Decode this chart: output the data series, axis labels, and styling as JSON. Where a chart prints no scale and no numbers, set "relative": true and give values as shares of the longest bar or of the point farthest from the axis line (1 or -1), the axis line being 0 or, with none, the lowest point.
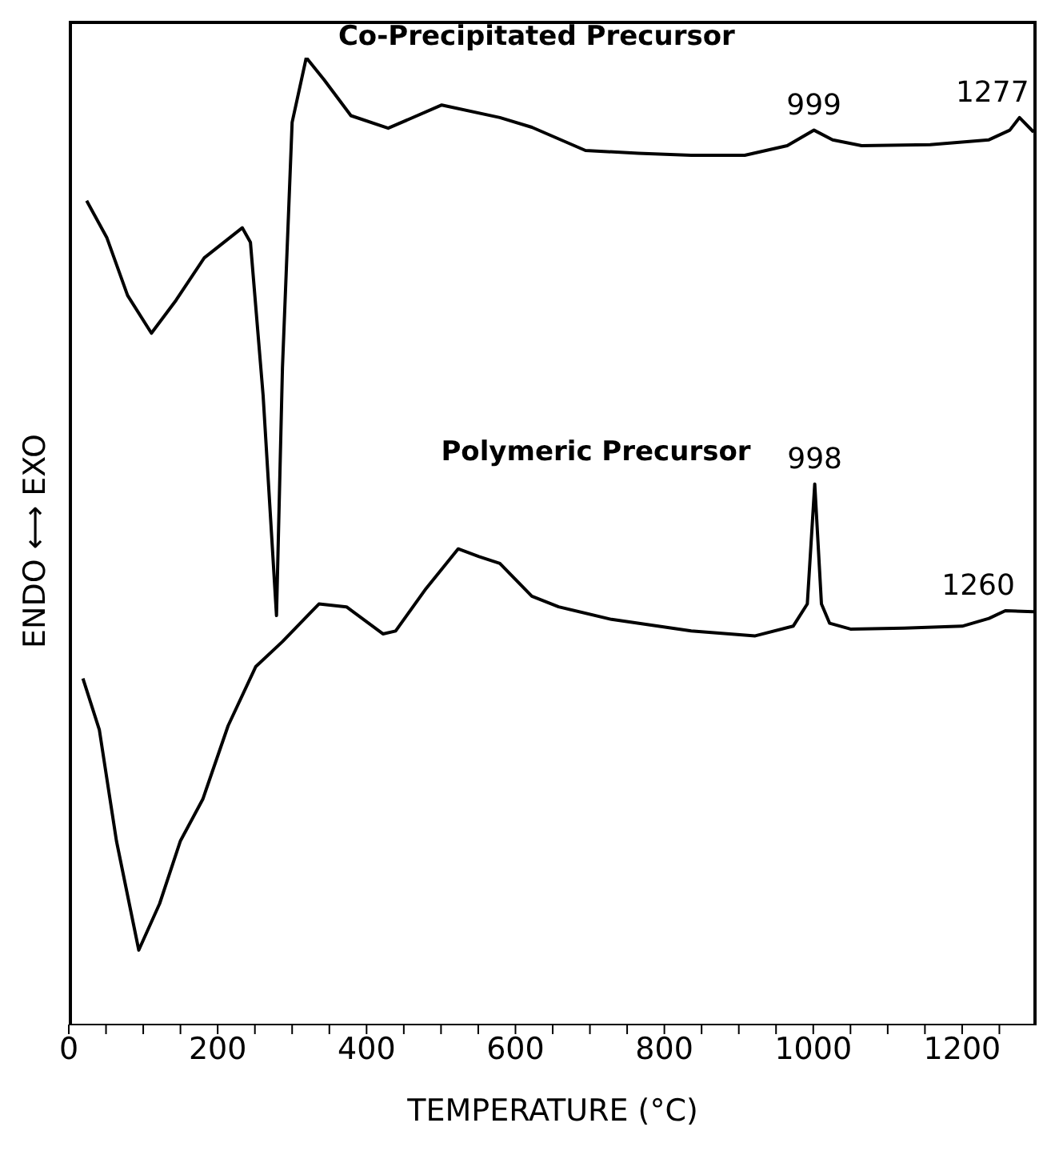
{
  "chart_data": {
    "type": "line",
    "relative": true,
    "xlabel": "TEMPERATURE (°C)",
    "ylabel": "ENDO ⟷ EXO",
    "xlim": [
      0,
      1300
    ],
    "xticks": [
      0,
      {
        "value": 50,
        "label": null
      },
      200,
      {
        "value": 100,
        "label": null
      },
      {
        "value": 150,
        "label": null
      },
      {
        "value": 250,
        "label": null
      },
      {
        "value": 300,
        "label": null
      },
      {
        "value": 350,
        "label": null
      },
      400,
      {
        "value": 450,
        "label": null
      },
      {
        "value": 500,
        "label": null
      },
      {
        "value": 550,
        "label": null
      },
      600,
      {
        "value": 650,
        "label": null
      },
      {
        "value": 700,
        "label": null
      },
      {
        "value": 750,
        "label": null
      },
      800,
      {
        "value": 850,
        "label": null
      },
      {
        "value": 900,
        "label": null
      },
      {
        "value": 950,
        "label": null
      },
      1000,
      {
        "value": 1050,
        "label": null
      },
      {
        "value": 1100,
        "label": null
      },
      {
        "value": 1150,
        "label": null
      },
      1200,
      {
        "value": 1250,
        "label": null
      }
    ],
    "marker": "none",
    "line_style": "solid",
    "series": [
      {
        "name": "Co-Precipitated Precursor",
        "color": "#000000",
        "x": [
          24,
          51,
          79,
          111,
          144,
          182,
          233,
          244,
          261,
          279,
          287,
          300,
          319,
          343,
          379,
          429,
          501,
          579,
          622,
          694,
          765,
          836,
          908,
          965,
          1001,
          1026,
          1065,
          1157,
          1236,
          1264,
          1277,
          1296
        ],
        "values": [
          0.852,
          0.814,
          0.754,
          0.715,
          0.749,
          0.793,
          0.824,
          0.809,
          0.651,
          0.423,
          0.679,
          0.933,
          1.0,
          0.977,
          0.94,
          0.927,
          0.951,
          0.938,
          0.928,
          0.904,
          0.901,
          0.899,
          0.899,
          0.909,
          0.925,
          0.915,
          0.909,
          0.91,
          0.915,
          0.925,
          0.938,
          0.923
        ]
      },
      {
        "name": "Polymeric Precursor",
        "color": "#000000",
        "x": [
          19,
          41,
          64,
          94,
          122,
          150,
          180,
          214,
          251,
          287,
          336,
          373,
          422,
          439,
          480,
          523,
          551,
          579,
          622,
          658,
          729,
          836,
          922,
          973,
          992,
          1002,
          1011,
          1022,
          1050,
          1122,
          1200,
          1236,
          1258,
          1296
        ],
        "values": [
          0.358,
          0.305,
          0.19,
          0.077,
          0.125,
          0.19,
          0.233,
          0.309,
          0.37,
          0.396,
          0.435,
          0.432,
          0.404,
          0.407,
          0.451,
          0.492,
          0.484,
          0.477,
          0.443,
          0.432,
          0.419,
          0.407,
          0.402,
          0.412,
          0.435,
          0.559,
          0.435,
          0.415,
          0.409,
          0.41,
          0.412,
          0.42,
          0.428,
          0.427
        ]
      }
    ],
    "annotations": [
      {
        "text": "999",
        "x": 1001,
        "y": 0.925
      },
      {
        "text": "1277",
        "x": 1277,
        "y": 0.938
      },
      {
        "text": "998",
        "x": 1002,
        "y": 0.559
      },
      {
        "text": "1260",
        "x": 1258,
        "y": 0.428
      }
    ]
  }
}
